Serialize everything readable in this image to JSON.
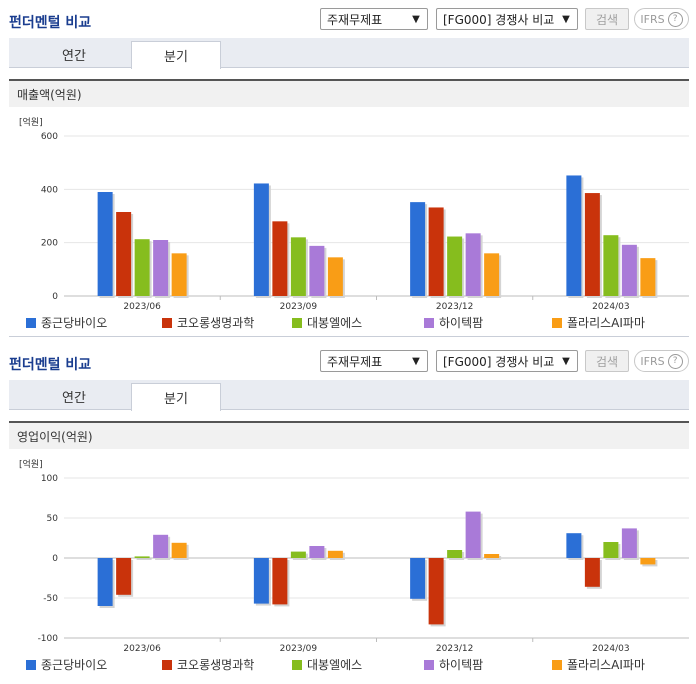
{
  "header": {
    "title": "펀더멘털 비교",
    "statement_select": "주재무제표",
    "peer_select": "[FG000] 경쟁사 비교",
    "search_label": "검색",
    "ifrs_label": "IFRS",
    "help_glyph": "?"
  },
  "tabs": [
    {
      "label": "연간",
      "active": false
    },
    {
      "label": "분기",
      "active": true
    }
  ],
  "colors": {
    "종근당바이오": "#2b6fd6",
    "코오롱생명과학": "#c9330b",
    "대봉엘에스": "#86bd1e",
    "하이텍팜": "#a97ad8",
    "폴라리스AI파마": "#f99d16"
  },
  "chart_data": [
    {
      "type": "bar",
      "title": "매출액(억원)",
      "unit_label": "[억원]",
      "categories": [
        "2023/06",
        "2023/09",
        "2023/12",
        "2024/03"
      ],
      "ylim": [
        0,
        600
      ],
      "yticks": [
        0,
        200,
        400,
        600
      ],
      "grid": true,
      "legend_position": "bottom",
      "series": [
        {
          "name": "종근당바이오",
          "values": [
            390,
            422,
            352,
            452
          ]
        },
        {
          "name": "코오롱생명과학",
          "values": [
            315,
            280,
            332,
            386
          ]
        },
        {
          "name": "대봉엘에스",
          "values": [
            213,
            220,
            223,
            228
          ]
        },
        {
          "name": "하이텍팜",
          "values": [
            210,
            188,
            235,
            192
          ]
        },
        {
          "name": "폴라리스AI파마",
          "values": [
            160,
            145,
            160,
            142
          ]
        }
      ]
    },
    {
      "type": "bar",
      "title": "영업이익(억원)",
      "unit_label": "[억원]",
      "categories": [
        "2023/06",
        "2023/09",
        "2023/12",
        "2024/03"
      ],
      "ylim": [
        -100,
        100
      ],
      "yticks": [
        -100,
        -50,
        0,
        50,
        100
      ],
      "grid": true,
      "legend_position": "bottom",
      "series": [
        {
          "name": "종근당바이오",
          "values": [
            -60,
            -57,
            -51,
            31
          ]
        },
        {
          "name": "코오롱생명과학",
          "values": [
            -46,
            -58,
            -83,
            -36
          ]
        },
        {
          "name": "대봉엘에스",
          "values": [
            2,
            8,
            10,
            20
          ]
        },
        {
          "name": "하이텍팜",
          "values": [
            29,
            15,
            58,
            37
          ]
        },
        {
          "name": "폴라리스AI파마",
          "values": [
            19,
            9,
            5,
            -8
          ]
        }
      ]
    }
  ]
}
